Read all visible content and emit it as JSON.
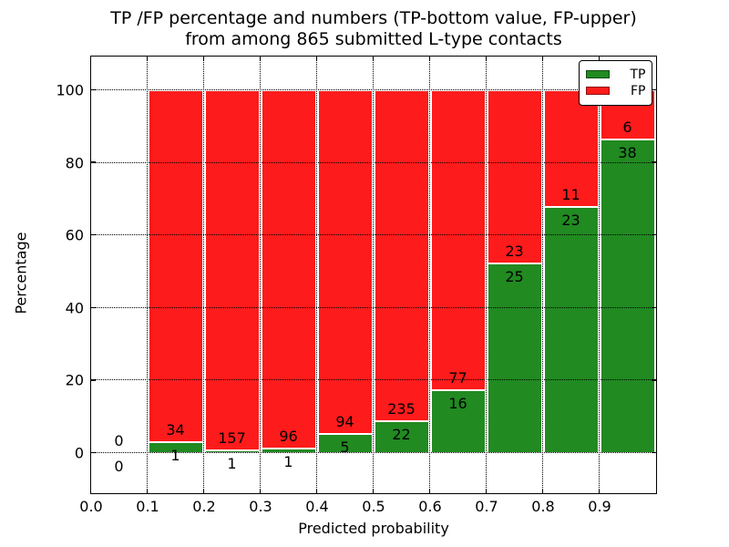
{
  "figure": {
    "title_line1": "TP /FP percentage and numbers (TP-bottom value, FP-upper)",
    "title_line2": "from among 865 submitted L-type contacts"
  },
  "chart_data": {
    "type": "bar",
    "subtype": "stacked-percentage-histogram",
    "title": "TP /FP percentage and numbers (TP-bottom value, FP-upper) from among 865 submitted L-type contacts",
    "xlabel": "Predicted probability",
    "ylabel": "Percentage",
    "total_contacts": 865,
    "bin_edges": [
      0.0,
      0.1,
      0.2,
      0.3,
      0.4,
      0.5,
      0.6,
      0.7,
      0.8,
      0.9,
      1.0
    ],
    "series": [
      {
        "name": "TP",
        "color": "#218a21",
        "values": [
          0,
          1,
          1,
          1,
          5,
          22,
          16,
          25,
          23,
          38
        ]
      },
      {
        "name": "FP",
        "color": "#fe1b1b",
        "values": [
          0,
          34,
          157,
          96,
          94,
          235,
          77,
          23,
          11,
          6
        ]
      }
    ],
    "bars_normalized_to_100_percent": true,
    "annotation_rule": "TP count below segment boundary, FP count above segment boundary",
    "x_ticks": [
      {
        "value": 0.0,
        "label": "0.0"
      },
      {
        "value": 0.1,
        "label": "0.1"
      },
      {
        "value": 0.2,
        "label": "0.2"
      },
      {
        "value": 0.3,
        "label": "0.3"
      },
      {
        "value": 0.4,
        "label": "0.4"
      },
      {
        "value": 0.5,
        "label": "0.5"
      },
      {
        "value": 0.6,
        "label": "0.6"
      },
      {
        "value": 0.7,
        "label": "0.7"
      },
      {
        "value": 0.8,
        "label": "0.8"
      },
      {
        "value": 0.9,
        "label": "0.9"
      }
    ],
    "y_ticks": [
      {
        "value": 0,
        "label": "0"
      },
      {
        "value": 20,
        "label": "20"
      },
      {
        "value": 40,
        "label": "40"
      },
      {
        "value": 60,
        "label": "60"
      },
      {
        "value": 80,
        "label": "80"
      },
      {
        "value": 100,
        "label": "100"
      }
    ],
    "xlim": [
      0.0,
      1.0
    ],
    "ylim": [
      -11.05,
      109.3
    ],
    "grid": "dotted-black-over-bars",
    "legend": {
      "position": "upper right",
      "labels": [
        "TP",
        "FP"
      ]
    },
    "bar_edge_color": "#ffffff",
    "background_color": "#ffffff"
  }
}
